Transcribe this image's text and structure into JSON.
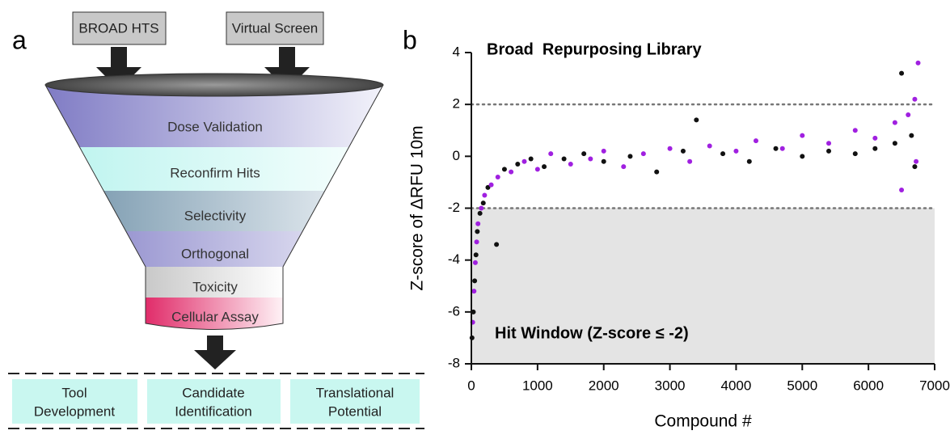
{
  "panel_labels": [
    "a",
    "b"
  ],
  "funnel": {
    "inputs": [
      "BROAD HTS",
      "Virtual Screen"
    ],
    "stages": [
      "Dose Validation",
      "Reconfirm Hits",
      "Selectivity",
      "Orthogonal",
      "Toxicity",
      "Cellular Assay"
    ],
    "outcomes": [
      [
        "Tool",
        "Development"
      ],
      [
        "Candidate",
        "Identification"
      ],
      [
        "Translational",
        "Potential"
      ]
    ]
  },
  "chart_data": {
    "type": "scatter",
    "title": "Broad  Repurposing Library",
    "annotation": "Hit Window (Z-score ≤ -2)",
    "xlabel": "Compound #",
    "ylabel": "Z-score of ΔRFU 10m",
    "xlim": [
      0,
      7000
    ],
    "xticks": [
      0,
      1000,
      2000,
      3000,
      4000,
      5000,
      6000,
      7000
    ],
    "ylim": [
      -8,
      4
    ],
    "yticks": [
      -8,
      -6,
      -4,
      -2,
      0,
      2,
      4
    ],
    "hlines": [
      2,
      -2
    ],
    "shade_below": -2,
    "series": [
      {
        "color": "#111111",
        "x": [
          10,
          30,
          50,
          70,
          90,
          130,
          180,
          250,
          380,
          500,
          700,
          900,
          1100,
          1400,
          1700,
          2000,
          2400,
          2800,
          3200,
          3400,
          3800,
          4200,
          4600,
          5000,
          5400,
          5800,
          6100,
          6400,
          6500,
          6650,
          6700
        ],
        "values": [
          -7.0,
          -6.0,
          -4.8,
          -3.8,
          -2.9,
          -2.2,
          -1.8,
          -1.2,
          -3.4,
          -0.5,
          -0.3,
          -0.1,
          -0.4,
          -0.1,
          0.1,
          -0.2,
          0.0,
          -0.6,
          0.2,
          1.4,
          0.1,
          -0.2,
          0.3,
          0.0,
          0.2,
          0.1,
          0.3,
          0.5,
          3.2,
          0.8,
          -0.4
        ]
      },
      {
        "color": "#a020e0",
        "x": [
          20,
          40,
          60,
          80,
          100,
          150,
          200,
          300,
          400,
          600,
          800,
          1000,
          1200,
          1500,
          1800,
          2000,
          2300,
          2600,
          3000,
          3300,
          3600,
          4000,
          4300,
          4700,
          5000,
          5400,
          5800,
          6100,
          6400,
          6600,
          6700,
          6750,
          6720,
          6500
        ],
        "values": [
          -6.4,
          -5.2,
          -4.1,
          -3.3,
          -2.6,
          -2.0,
          -1.5,
          -1.1,
          -0.8,
          -0.6,
          -0.2,
          -0.5,
          0.1,
          -0.3,
          -0.1,
          0.2,
          -0.4,
          0.1,
          0.3,
          -0.2,
          0.4,
          0.2,
          0.6,
          0.3,
          0.8,
          0.5,
          1.0,
          0.7,
          1.3,
          1.6,
          2.2,
          3.6,
          -0.2,
          -1.3
        ]
      }
    ]
  }
}
